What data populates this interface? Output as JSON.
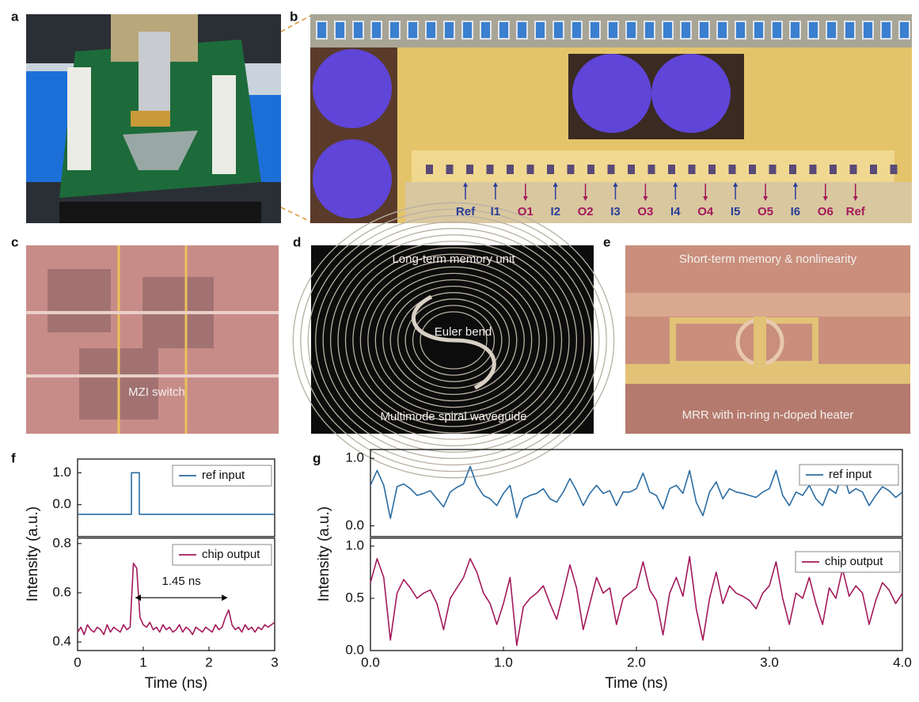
{
  "panel_labels": [
    "a",
    "b",
    "c",
    "d",
    "e",
    "f",
    "g"
  ],
  "b_labels": [
    "Ref",
    "I1",
    "O1",
    "I2",
    "O2",
    "I3",
    "O3",
    "I4",
    "O4",
    "I5",
    "O5",
    "I6",
    "O6",
    "Ref"
  ],
  "c_label": "MZI switch",
  "d_labels": [
    "Long-term memory unit",
    "Euler bend",
    "Multimode spiral waveguide"
  ],
  "e_labels": [
    "Short-term memory & nonlinearity",
    "MRR with in-ring n-doped  heater"
  ],
  "chart_data": [
    {
      "type": "line",
      "xlim": [
        0,
        3
      ],
      "ylim": [
        -1.0,
        1.43
      ],
      "yticks": [
        {
          "value": 0,
          "label": "0.0"
        },
        {
          "value": 1,
          "label": "1.0"
        }
      ],
      "x": [
        0,
        0.82,
        0.82,
        0.94,
        0.94,
        3
      ],
      "series": [
        {
          "name": "ref input",
          "color": "#2b6ca3",
          "values": [
            -0.3,
            -0.3,
            1.0,
            1.0,
            -0.3,
            -0.3
          ]
        }
      ]
    },
    {
      "type": "line",
      "xlim": [
        0,
        3
      ],
      "ylim": [
        0.365,
        0.822
      ],
      "xlabel": "Time (ns)",
      "ylabel": "Intensity (a.u.)",
      "xticks": [
        0,
        1,
        2,
        3
      ],
      "yticks": [
        0.4,
        0.6,
        0.8
      ],
      "annotation": "1.45 ns",
      "x": [
        0,
        0.05,
        0.1,
        0.15,
        0.2,
        0.25,
        0.3,
        0.35,
        0.4,
        0.45,
        0.5,
        0.55,
        0.6,
        0.65,
        0.7,
        0.75,
        0.8,
        0.85,
        0.9,
        0.95,
        1,
        1.05,
        1.1,
        1.15,
        1.2,
        1.25,
        1.3,
        1.35,
        1.4,
        1.45,
        1.5,
        1.55,
        1.6,
        1.65,
        1.7,
        1.75,
        1.8,
        1.85,
        1.9,
        1.95,
        2,
        2.05,
        2.1,
        2.15,
        2.2,
        2.25,
        2.3,
        2.35,
        2.4,
        2.45,
        2.5,
        2.55,
        2.6,
        2.65,
        2.7,
        2.75,
        2.8,
        2.85,
        2.9,
        2.95,
        3
      ],
      "series": [
        {
          "name": "chip output",
          "color": "#a3195b",
          "values": [
            0.44,
            0.46,
            0.43,
            0.47,
            0.45,
            0.44,
            0.46,
            0.45,
            0.43,
            0.47,
            0.44,
            0.46,
            0.45,
            0.44,
            0.47,
            0.45,
            0.46,
            0.72,
            0.7,
            0.5,
            0.47,
            0.46,
            0.48,
            0.45,
            0.46,
            0.44,
            0.47,
            0.45,
            0.46,
            0.44,
            0.45,
            0.47,
            0.44,
            0.46,
            0.45,
            0.43,
            0.46,
            0.45,
            0.44,
            0.46,
            0.45,
            0.44,
            0.47,
            0.45,
            0.46,
            0.5,
            0.53,
            0.47,
            0.45,
            0.46,
            0.44,
            0.47,
            0.45,
            0.46,
            0.44,
            0.46,
            0.45,
            0.47,
            0.46,
            0.47,
            0.48
          ]
        }
      ]
    },
    {
      "type": "line",
      "xlim": [
        0,
        4
      ],
      "ylim": [
        -0.16,
        1.13
      ],
      "yticks": [
        {
          "value": 0,
          "label": "0.0"
        },
        {
          "value": 1,
          "label": "1.0"
        }
      ],
      "x": [
        0,
        0.05,
        0.1,
        0.15,
        0.2,
        0.25,
        0.3,
        0.35,
        0.4,
        0.45,
        0.5,
        0.55,
        0.6,
        0.65,
        0.7,
        0.75,
        0.8,
        0.85,
        0.9,
        0.95,
        1,
        1.05,
        1.1,
        1.15,
        1.2,
        1.25,
        1.3,
        1.35,
        1.4,
        1.45,
        1.5,
        1.55,
        1.6,
        1.65,
        1.7,
        1.75,
        1.8,
        1.85,
        1.9,
        1.95,
        2,
        2.05,
        2.1,
        2.15,
        2.2,
        2.25,
        2.3,
        2.35,
        2.4,
        2.45,
        2.5,
        2.55,
        2.6,
        2.65,
        2.7,
        2.75,
        2.8,
        2.85,
        2.9,
        2.95,
        3,
        3.05,
        3.1,
        3.15,
        3.2,
        3.25,
        3.3,
        3.35,
        3.4,
        3.45,
        3.5,
        3.55,
        3.6,
        3.65,
        3.7,
        3.75,
        3.8,
        3.85,
        3.9,
        3.95,
        4
      ],
      "series": [
        {
          "name": "ref input",
          "color": "#2b6ca3",
          "values": [
            0.6,
            0.82,
            0.6,
            0.11,
            0.58,
            0.62,
            0.55,
            0.45,
            0.48,
            0.52,
            0.4,
            0.28,
            0.5,
            0.57,
            0.62,
            0.88,
            0.6,
            0.45,
            0.4,
            0.3,
            0.48,
            0.6,
            0.12,
            0.4,
            0.45,
            0.48,
            0.55,
            0.4,
            0.35,
            0.5,
            0.7,
            0.52,
            0.3,
            0.48,
            0.6,
            0.48,
            0.52,
            0.3,
            0.5,
            0.5,
            0.55,
            0.78,
            0.5,
            0.45,
            0.25,
            0.55,
            0.6,
            0.48,
            0.82,
            0.35,
            0.15,
            0.5,
            0.65,
            0.4,
            0.55,
            0.5,
            0.48,
            0.45,
            0.42,
            0.5,
            0.55,
            0.82,
            0.45,
            0.3,
            0.5,
            0.45,
            0.6,
            0.4,
            0.3,
            0.55,
            0.48,
            0.8,
            0.48,
            0.55,
            0.5,
            0.3,
            0.45,
            0.58,
            0.52,
            0.42,
            0.5
          ]
        }
      ]
    },
    {
      "type": "line",
      "xlim": [
        0,
        4
      ],
      "ylim": [
        0,
        1.076
      ],
      "xlabel": "Time (ns)",
      "ylabel": "Intensity (a.u.)",
      "xticks": [
        {
          "value": 0,
          "label": "0.0"
        },
        {
          "value": 1,
          "label": "1.0"
        },
        {
          "value": 2,
          "label": "2.0"
        },
        {
          "value": 3,
          "label": "3.0"
        },
        {
          "value": 4,
          "label": "4.0"
        }
      ],
      "yticks": [
        {
          "value": 0,
          "label": "0.0"
        },
        0.5,
        {
          "value": 1,
          "label": "1.0"
        }
      ],
      "x": [
        0,
        0.05,
        0.1,
        0.15,
        0.2,
        0.25,
        0.3,
        0.35,
        0.4,
        0.45,
        0.5,
        0.55,
        0.6,
        0.65,
        0.7,
        0.75,
        0.8,
        0.85,
        0.9,
        0.95,
        1,
        1.05,
        1.1,
        1.15,
        1.2,
        1.25,
        1.3,
        1.35,
        1.4,
        1.45,
        1.5,
        1.55,
        1.6,
        1.65,
        1.7,
        1.75,
        1.8,
        1.85,
        1.9,
        1.95,
        2,
        2.05,
        2.1,
        2.15,
        2.2,
        2.25,
        2.3,
        2.35,
        2.4,
        2.45,
        2.5,
        2.55,
        2.6,
        2.65,
        2.7,
        2.75,
        2.8,
        2.85,
        2.9,
        2.95,
        3,
        3.05,
        3.1,
        3.15,
        3.2,
        3.25,
        3.3,
        3.35,
        3.4,
        3.45,
        3.5,
        3.55,
        3.6,
        3.65,
        3.7,
        3.75,
        3.8,
        3.85,
        3.9,
        3.95,
        4
      ],
      "series": [
        {
          "name": "chip output",
          "color": "#a3195b",
          "values": [
            0.65,
            0.88,
            0.7,
            0.1,
            0.55,
            0.68,
            0.6,
            0.5,
            0.55,
            0.58,
            0.45,
            0.2,
            0.5,
            0.6,
            0.7,
            0.88,
            0.75,
            0.55,
            0.45,
            0.25,
            0.45,
            0.7,
            0.05,
            0.42,
            0.5,
            0.55,
            0.62,
            0.45,
            0.3,
            0.55,
            0.82,
            0.6,
            0.2,
            0.45,
            0.7,
            0.55,
            0.6,
            0.25,
            0.5,
            0.55,
            0.6,
            0.85,
            0.58,
            0.48,
            0.15,
            0.55,
            0.7,
            0.52,
            0.9,
            0.4,
            0.1,
            0.5,
            0.75,
            0.45,
            0.62,
            0.55,
            0.52,
            0.48,
            0.4,
            0.55,
            0.62,
            0.85,
            0.5,
            0.25,
            0.55,
            0.5,
            0.7,
            0.45,
            0.25,
            0.6,
            0.5,
            0.78,
            0.52,
            0.62,
            0.55,
            0.25,
            0.48,
            0.65,
            0.58,
            0.45,
            0.55
          ]
        }
      ]
    }
  ]
}
